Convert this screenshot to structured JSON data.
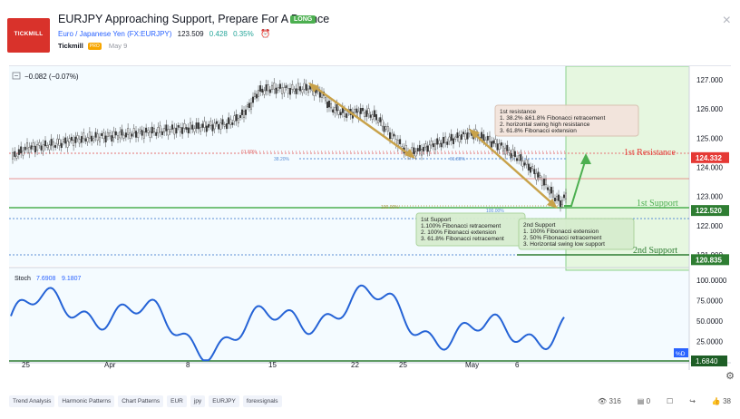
{
  "header": {
    "logo_text": "TICKMILL",
    "title": "EURJPY Approaching Support, Prepare For A Bounce",
    "badge": "LONG",
    "symbol": "Euro / Japanese Yen (FX:EURJPY)",
    "price": "123.509",
    "change": "0.428",
    "change_pct": "0.35%",
    "author": "Tickmill",
    "author_badge": "PRO",
    "date": "May 9",
    "close_label": "×"
  },
  "chart": {
    "ohlc_change": "−0.082 (−0.07%)",
    "price_axis": [
      "127.000",
      "126.000",
      "125.000",
      "124.000",
      "123.000",
      "122.000",
      "121.000"
    ],
    "price_labels": [
      {
        "text": "124.332",
        "color": "#e53935",
        "value": 124.332
      },
      {
        "text": "122.520",
        "color": "#2e7d32",
        "value": 122.52
      },
      {
        "text": "120.835",
        "color": "#2e7d32",
        "value": 120.835
      }
    ],
    "time_axis": [
      "25",
      "Apr",
      "8",
      "15",
      "22",
      "25",
      "May",
      "6"
    ],
    "levels": {
      "resistance_label": "1st Resistance",
      "support1_label": "1st Support",
      "support2_label": "2nd Support"
    },
    "fib_labels": [
      "61.80%",
      "38.20%",
      "61.80%",
      "100.00%",
      "100.00%"
    ],
    "notes": {
      "resistance": [
        "1st resistance",
        "1. 38.2% &61.8% Fibonacci retracement",
        "2. horizontal swing high resistance",
        "3. 61.8%  Fibonacci extension"
      ],
      "support1": [
        "1st Support",
        "1.100% Fibonacci retracement",
        "2. 100% Fibonacci extension",
        "3. 61.8% Fibonacci retracement"
      ],
      "support2": [
        "2nd Support",
        "1. 100% Fibonacci extension",
        "2. 50% Fibonacci retracement",
        "3. Horizontal swing low support"
      ]
    }
  },
  "stoch": {
    "label": "Stoch",
    "k": "7.6908",
    "d": "9.1807",
    "axis": [
      "100.0000",
      "75.0000",
      "50.0000",
      "25.0000"
    ],
    "marker_label": "%D",
    "current": "1.6840"
  },
  "footer": {
    "tags": [
      "Trend Analysis",
      "Harmonic Patterns",
      "Chart Patterns",
      "EUR",
      "jpy",
      "EURJPY",
      "forexsignals"
    ],
    "views": "316",
    "comments": "0",
    "likes": "38"
  }
}
